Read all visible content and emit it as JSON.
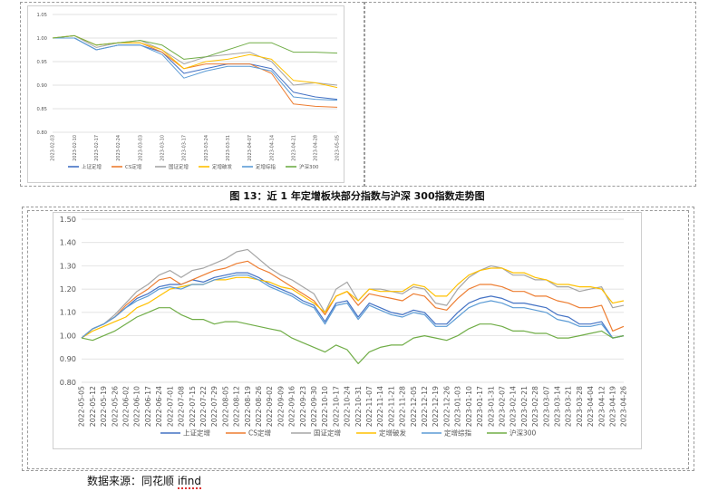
{
  "figure_title": "图 13：近 1 年定增板块部分指数与沪深 300指数走势图",
  "source": {
    "prefix": "数据来源：同花顺 ",
    "brand": "ifind"
  },
  "colors": {
    "上证定增": "#4472c4",
    "CS定增": "#ed7d31",
    "国证定增": "#a5a5a5",
    "定增破发": "#ffc000",
    "定增综指": "#5b9bd5",
    "沪深300": "#70ad47"
  },
  "chart_data": [
    {
      "type": "line",
      "title": "",
      "xlabel": "",
      "ylabel": "",
      "ylim": [
        0.8,
        1.05
      ],
      "yticks": [
        "0.80",
        "0.85",
        "0.90",
        "0.95",
        "1.00",
        "1.05"
      ],
      "grid": true,
      "legend": "bottom",
      "x": [
        "2023-02-03",
        "2023-02-10",
        "2023-02-17",
        "2023-02-24",
        "2023-03-03",
        "2023-03-10",
        "2023-03-17",
        "2023-03-24",
        "2023-03-31",
        "2023-04-07",
        "2023-04-14",
        "2023-04-21",
        "2023-04-28",
        "2023-05-05"
      ],
      "series": [
        {
          "name": "上证定增",
          "values": [
            1.0,
            1.0,
            0.975,
            0.985,
            0.985,
            0.97,
            0.925,
            0.935,
            0.945,
            0.945,
            0.935,
            0.885,
            0.875,
            0.87
          ]
        },
        {
          "name": "CS定增",
          "values": [
            1.0,
            1.005,
            0.985,
            0.99,
            0.99,
            0.97,
            0.935,
            0.945,
            0.945,
            0.945,
            0.925,
            0.86,
            0.855,
            0.853
          ]
        },
        {
          "name": "国证定增",
          "values": [
            1.0,
            1.005,
            0.98,
            0.99,
            0.995,
            0.975,
            0.945,
            0.96,
            0.965,
            0.97,
            0.95,
            0.9,
            0.905,
            0.9
          ]
        },
        {
          "name": "定增破发",
          "values": [
            1.0,
            1.005,
            0.985,
            0.99,
            0.99,
            0.975,
            0.935,
            0.95,
            0.955,
            0.965,
            0.955,
            0.91,
            0.905,
            0.895
          ]
        },
        {
          "name": "定增综指",
          "values": [
            1.0,
            1.0,
            0.975,
            0.985,
            0.985,
            0.965,
            0.915,
            0.93,
            0.94,
            0.94,
            0.93,
            0.875,
            0.87,
            0.868
          ]
        },
        {
          "name": "沪深300",
          "values": [
            1.0,
            1.005,
            0.985,
            0.99,
            0.995,
            0.985,
            0.955,
            0.96,
            0.975,
            0.99,
            0.99,
            0.97,
            0.97,
            0.968
          ]
        }
      ]
    },
    {
      "type": "line",
      "title": "",
      "xlabel": "",
      "ylabel": "",
      "ylim": [
        0.8,
        1.5
      ],
      "yticks": [
        "0.80",
        "0.90",
        "1.00",
        "1.10",
        "1.20",
        "1.30",
        "1.40",
        "1.50"
      ],
      "grid": true,
      "legend": "bottom",
      "x": [
        "2022-05-05",
        "2022-05-12",
        "2022-05-19",
        "2022-05-26",
        "2022-06-02",
        "2022-06-10",
        "2022-06-17",
        "2022-06-24",
        "2022-07-01",
        "2022-07-08",
        "2022-07-15",
        "2022-07-22",
        "2022-07-29",
        "2022-08-05",
        "2022-08-12",
        "2022-08-19",
        "2022-08-26",
        "2022-09-02",
        "2022-09-09",
        "2022-09-16",
        "2022-09-23",
        "2022-09-30",
        "2022-10-10",
        "2022-10-17",
        "2022-10-24",
        "2022-10-31",
        "2022-11-07",
        "2022-11-14",
        "2022-11-21",
        "2022-11-28",
        "2022-12-05",
        "2022-12-12",
        "2022-12-19",
        "2022-12-26",
        "2023-01-03",
        "2023-01-10",
        "2023-01-17",
        "2023-01-31",
        "2023-02-07",
        "2023-02-14",
        "2023-02-21",
        "2023-02-28",
        "2023-03-07",
        "2023-03-14",
        "2023-03-21",
        "2023-03-28",
        "2023-04-04",
        "2023-04-12",
        "2023-04-19",
        "2023-04-26"
      ],
      "series": [
        {
          "name": "上证定增",
          "values": [
            0.99,
            1.03,
            1.05,
            1.08,
            1.12,
            1.16,
            1.18,
            1.21,
            1.22,
            1.22,
            1.24,
            1.23,
            1.25,
            1.26,
            1.27,
            1.27,
            1.25,
            1.22,
            1.2,
            1.18,
            1.15,
            1.13,
            1.06,
            1.14,
            1.15,
            1.08,
            1.14,
            1.12,
            1.1,
            1.09,
            1.11,
            1.1,
            1.05,
            1.05,
            1.1,
            1.14,
            1.16,
            1.17,
            1.16,
            1.14,
            1.14,
            1.13,
            1.12,
            1.09,
            1.08,
            1.05,
            1.05,
            1.06,
            0.99,
            1.0
          ]
        },
        {
          "name": "CS定增",
          "values": [
            0.99,
            1.03,
            1.05,
            1.08,
            1.13,
            1.17,
            1.2,
            1.24,
            1.25,
            1.22,
            1.24,
            1.26,
            1.28,
            1.29,
            1.31,
            1.32,
            1.29,
            1.27,
            1.24,
            1.21,
            1.18,
            1.15,
            1.09,
            1.17,
            1.19,
            1.13,
            1.18,
            1.17,
            1.16,
            1.15,
            1.18,
            1.17,
            1.12,
            1.11,
            1.16,
            1.2,
            1.22,
            1.22,
            1.21,
            1.19,
            1.19,
            1.17,
            1.17,
            1.15,
            1.14,
            1.12,
            1.12,
            1.13,
            1.02,
            1.04
          ]
        },
        {
          "name": "国证定增",
          "values": [
            0.99,
            1.03,
            1.05,
            1.09,
            1.14,
            1.19,
            1.22,
            1.26,
            1.28,
            1.25,
            1.28,
            1.29,
            1.31,
            1.33,
            1.36,
            1.37,
            1.33,
            1.29,
            1.26,
            1.24,
            1.21,
            1.18,
            1.1,
            1.2,
            1.23,
            1.15,
            1.2,
            1.2,
            1.19,
            1.18,
            1.21,
            1.2,
            1.14,
            1.13,
            1.2,
            1.25,
            1.28,
            1.3,
            1.29,
            1.26,
            1.26,
            1.24,
            1.24,
            1.21,
            1.21,
            1.19,
            1.2,
            1.21,
            1.12,
            1.13
          ]
        },
        {
          "name": "定增破发",
          "values": [
            0.99,
            1.02,
            1.04,
            1.06,
            1.08,
            1.12,
            1.14,
            1.17,
            1.2,
            1.21,
            1.22,
            1.22,
            1.24,
            1.24,
            1.25,
            1.25,
            1.24,
            1.23,
            1.21,
            1.2,
            1.17,
            1.14,
            1.1,
            1.17,
            1.19,
            1.15,
            1.2,
            1.19,
            1.19,
            1.19,
            1.22,
            1.21,
            1.17,
            1.17,
            1.22,
            1.26,
            1.28,
            1.29,
            1.29,
            1.27,
            1.27,
            1.25,
            1.24,
            1.22,
            1.22,
            1.21,
            1.21,
            1.2,
            1.14,
            1.15
          ]
        },
        {
          "name": "定增综指",
          "values": [
            0.99,
            1.03,
            1.05,
            1.08,
            1.12,
            1.15,
            1.17,
            1.2,
            1.21,
            1.2,
            1.22,
            1.22,
            1.24,
            1.25,
            1.26,
            1.26,
            1.24,
            1.21,
            1.19,
            1.17,
            1.14,
            1.12,
            1.05,
            1.13,
            1.14,
            1.07,
            1.13,
            1.11,
            1.09,
            1.08,
            1.1,
            1.09,
            1.04,
            1.04,
            1.08,
            1.12,
            1.14,
            1.15,
            1.14,
            1.12,
            1.12,
            1.11,
            1.1,
            1.07,
            1.06,
            1.04,
            1.04,
            1.05,
            0.99,
            1.0
          ]
        },
        {
          "name": "沪深300",
          "values": [
            0.99,
            0.98,
            1.0,
            1.02,
            1.05,
            1.08,
            1.1,
            1.12,
            1.12,
            1.09,
            1.07,
            1.07,
            1.05,
            1.06,
            1.06,
            1.05,
            1.04,
            1.03,
            1.02,
            0.99,
            0.97,
            0.95,
            0.93,
            0.96,
            0.94,
            0.88,
            0.93,
            0.95,
            0.96,
            0.96,
            0.99,
            1.0,
            0.99,
            0.98,
            1.0,
            1.03,
            1.05,
            1.05,
            1.04,
            1.02,
            1.02,
            1.01,
            1.01,
            0.99,
            0.99,
            1.0,
            1.01,
            1.02,
            0.99,
            1.0
          ]
        }
      ]
    }
  ]
}
